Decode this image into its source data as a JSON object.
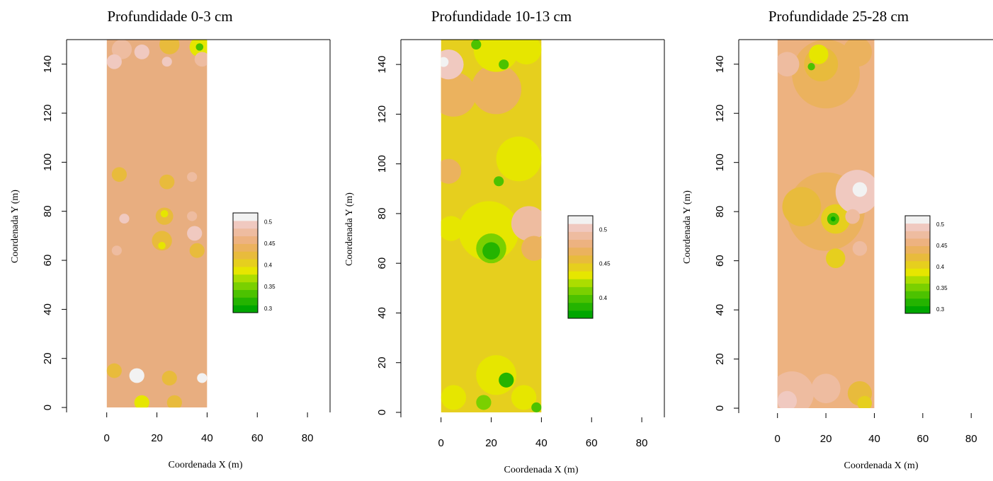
{
  "chart_data": [
    {
      "type": "heatmap",
      "title": "Profundidade 0-3 cm",
      "xlabel": "Coordenada X (m)",
      "ylabel": "Coordenada Y (m)",
      "xlim": [
        -16,
        89
      ],
      "ylim": [
        -2,
        150
      ],
      "xticks": [
        0,
        20,
        40,
        60,
        80
      ],
      "yticks": [
        0,
        20,
        40,
        60,
        80,
        100,
        120,
        140
      ],
      "field_extent": {
        "x": [
          0,
          40
        ],
        "y": [
          0,
          150
        ]
      },
      "background": "#E8AE80",
      "legend": {
        "colors": [
          "#00A600",
          "#24B400",
          "#4CC200",
          "#7AD000",
          "#ABDD00",
          "#E6E600",
          "#E6CF1E",
          "#E8BB3C",
          "#EBB25E",
          "#EDB280",
          "#EEBCA0",
          "#F0C9C0",
          "#F2F2F2"
        ],
        "range": [
          0.29,
          0.52
        ],
        "labels": [
          {
            "value": 0.3,
            "text": "0.3"
          },
          {
            "value": 0.35,
            "text": "0.35"
          },
          {
            "value": 0.4,
            "text": "0.4"
          },
          {
            "value": 0.45,
            "text": "0.45"
          },
          {
            "value": 0.5,
            "text": "0.5"
          }
        ]
      },
      "patches": [
        {
          "x": 6,
          "y": 146,
          "r": 4,
          "color": "#EEBCA0"
        },
        {
          "x": 14,
          "y": 145,
          "r": 3,
          "color": "#F0C9C0"
        },
        {
          "x": 3,
          "y": 141,
          "r": 3,
          "color": "#F0C9C0"
        },
        {
          "x": 25,
          "y": 148,
          "r": 4,
          "color": "#E8BB3C"
        },
        {
          "x": 37,
          "y": 147,
          "r": 4,
          "color": "#E6E600"
        },
        {
          "x": 37,
          "y": 147,
          "r": 1.5,
          "color": "#4CC200"
        },
        {
          "x": 38,
          "y": 142,
          "r": 3,
          "color": "#EEBCA0"
        },
        {
          "x": 24,
          "y": 141,
          "r": 2,
          "color": "#F0C9C0"
        },
        {
          "x": 5,
          "y": 95,
          "r": 3,
          "color": "#E8BB3C"
        },
        {
          "x": 24,
          "y": 92,
          "r": 3,
          "color": "#E8BB3C"
        },
        {
          "x": 34,
          "y": 94,
          "r": 2,
          "color": "#EEBCA0"
        },
        {
          "x": 7,
          "y": 77,
          "r": 2,
          "color": "#F0C9C0"
        },
        {
          "x": 23,
          "y": 78,
          "r": 3.5,
          "color": "#E8BB3C"
        },
        {
          "x": 23,
          "y": 79,
          "r": 1.5,
          "color": "#E6E600"
        },
        {
          "x": 22,
          "y": 68,
          "r": 4,
          "color": "#E8BB3C"
        },
        {
          "x": 22,
          "y": 66,
          "r": 1.5,
          "color": "#E6E600"
        },
        {
          "x": 35,
          "y": 71,
          "r": 3,
          "color": "#F0C9C0"
        },
        {
          "x": 36,
          "y": 64,
          "r": 3,
          "color": "#E8BB3C"
        },
        {
          "x": 4,
          "y": 64,
          "r": 2,
          "color": "#EEBCA0"
        },
        {
          "x": 34,
          "y": 78,
          "r": 2,
          "color": "#EEBCA0"
        },
        {
          "x": 3,
          "y": 15,
          "r": 3,
          "color": "#E8BB3C"
        },
        {
          "x": 12,
          "y": 13,
          "r": 3,
          "color": "#F2F2F2"
        },
        {
          "x": 25,
          "y": 12,
          "r": 3,
          "color": "#E8BB3C"
        },
        {
          "x": 38,
          "y": 12,
          "r": 2,
          "color": "#F2F2F2"
        },
        {
          "x": 14,
          "y": 2,
          "r": 3,
          "color": "#E6E600"
        },
        {
          "x": 27,
          "y": 2,
          "r": 3,
          "color": "#E8BB3C"
        }
      ]
    },
    {
      "type": "heatmap",
      "title": "Profundidade 10-13 cm",
      "xlabel": "Coordenada X (m)",
      "ylabel": "Coordenada Y (m)",
      "xlim": [
        -16,
        89
      ],
      "ylim": [
        -2,
        150
      ],
      "xticks": [
        0,
        20,
        40,
        60,
        80
      ],
      "yticks": [
        0,
        20,
        40,
        60,
        80,
        100,
        120,
        140
      ],
      "field_extent": {
        "x": [
          0,
          40
        ],
        "y": [
          0,
          150
        ]
      },
      "background": "#E6CF1E",
      "legend": {
        "colors": [
          "#00A600",
          "#24B400",
          "#4CC200",
          "#7AD000",
          "#ABDD00",
          "#E6E600",
          "#E6CF1E",
          "#E8BB3C",
          "#EBB25E",
          "#EDB280",
          "#EEBCA0",
          "#F0C9C0",
          "#F2F2F2"
        ],
        "range": [
          0.37,
          0.52
        ],
        "labels": [
          {
            "value": 0.4,
            "text": "0.4"
          },
          {
            "value": 0.45,
            "text": "0.45"
          },
          {
            "value": 0.5,
            "text": "0.5"
          }
        ]
      },
      "patches": [
        {
          "x": 5,
          "y": 128,
          "r": 9,
          "color": "#EBB25E"
        },
        {
          "x": 22,
          "y": 130,
          "r": 10,
          "color": "#EBB25E"
        },
        {
          "x": 3,
          "y": 140,
          "r": 6,
          "color": "#F0C9C0"
        },
        {
          "x": 1,
          "y": 141,
          "r": 2,
          "color": "#F2F2F2"
        },
        {
          "x": 22,
          "y": 146,
          "r": 9,
          "color": "#E6E600"
        },
        {
          "x": 34,
          "y": 146,
          "r": 6,
          "color": "#E6E600"
        },
        {
          "x": 25,
          "y": 140,
          "r": 2,
          "color": "#4CC200"
        },
        {
          "x": 14,
          "y": 148,
          "r": 2,
          "color": "#4CC200"
        },
        {
          "x": 31,
          "y": 102,
          "r": 9,
          "color": "#E6E600"
        },
        {
          "x": 23,
          "y": 93,
          "r": 2,
          "color": "#4CC200"
        },
        {
          "x": 3,
          "y": 97,
          "r": 5,
          "color": "#EBB25E"
        },
        {
          "x": 19,
          "y": 73,
          "r": 12,
          "color": "#E6E600"
        },
        {
          "x": 20,
          "y": 66,
          "r": 6,
          "color": "#7AD000"
        },
        {
          "x": 20,
          "y": 65,
          "r": 3.5,
          "color": "#24B400"
        },
        {
          "x": 35,
          "y": 76,
          "r": 7,
          "color": "#EEBCA0"
        },
        {
          "x": 37,
          "y": 66,
          "r": 5,
          "color": "#EBB25E"
        },
        {
          "x": 4,
          "y": 74,
          "r": 5,
          "color": "#E6E600"
        },
        {
          "x": 22,
          "y": 15,
          "r": 8,
          "color": "#E6E600"
        },
        {
          "x": 26,
          "y": 13,
          "r": 3,
          "color": "#24B400"
        },
        {
          "x": 5,
          "y": 6,
          "r": 5,
          "color": "#E6E600"
        },
        {
          "x": 33,
          "y": 6,
          "r": 5,
          "color": "#E6E600"
        },
        {
          "x": 17,
          "y": 4,
          "r": 3,
          "color": "#7AD000"
        },
        {
          "x": 38,
          "y": 2,
          "r": 2,
          "color": "#4CC200"
        }
      ]
    },
    {
      "type": "heatmap",
      "title": "Profundidade 25-28 cm",
      "xlabel": "Coordenada X (m)",
      "ylabel": "Coordenada Y (m)",
      "xlim": [
        -16,
        89
      ],
      "ylim": [
        -2,
        150
      ],
      "xticks": [
        0,
        20,
        40,
        60,
        80
      ],
      "yticks": [
        0,
        20,
        40,
        60,
        80,
        100,
        120,
        140
      ],
      "field_extent": {
        "x": [
          0,
          40
        ],
        "y": [
          0,
          150
        ]
      },
      "background": "#EDB280",
      "legend": {
        "colors": [
          "#00A600",
          "#24B400",
          "#4CC200",
          "#7AD000",
          "#ABDD00",
          "#E6E600",
          "#E6CF1E",
          "#E8BB3C",
          "#EBB25E",
          "#EDB280",
          "#EEBCA0",
          "#F0C9C0",
          "#F2F2F2"
        ],
        "range": [
          0.29,
          0.52
        ],
        "labels": [
          {
            "value": 0.3,
            "text": "0.3"
          },
          {
            "value": 0.35,
            "text": "0.35"
          },
          {
            "value": 0.4,
            "text": "0.4"
          },
          {
            "value": 0.45,
            "text": "0.45"
          },
          {
            "value": 0.5,
            "text": "0.5"
          }
        ]
      },
      "patches": [
        {
          "x": 20,
          "y": 136,
          "r": 14,
          "color": "#EBB25E"
        },
        {
          "x": 18,
          "y": 140,
          "r": 7,
          "color": "#E8BB3C"
        },
        {
          "x": 17,
          "y": 144,
          "r": 4,
          "color": "#E6E600"
        },
        {
          "x": 14,
          "y": 139,
          "r": 1.5,
          "color": "#4CC200"
        },
        {
          "x": 4,
          "y": 140,
          "r": 5,
          "color": "#EEBCA0"
        },
        {
          "x": 33,
          "y": 145,
          "r": 6,
          "color": "#EBB25E"
        },
        {
          "x": 20,
          "y": 80,
          "r": 16,
          "color": "#EBB25E"
        },
        {
          "x": 10,
          "y": 82,
          "r": 8,
          "color": "#E8BB3C"
        },
        {
          "x": 24,
          "y": 77,
          "r": 6,
          "color": "#E6CF1E"
        },
        {
          "x": 23,
          "y": 77,
          "r": 2.5,
          "color": "#4CC200"
        },
        {
          "x": 23,
          "y": 77,
          "r": 1,
          "color": "#00A600"
        },
        {
          "x": 33,
          "y": 88,
          "r": 9,
          "color": "#F0C9C0"
        },
        {
          "x": 34,
          "y": 89,
          "r": 3,
          "color": "#F2F2F2"
        },
        {
          "x": 31,
          "y": 78,
          "r": 3,
          "color": "#EEBCA0"
        },
        {
          "x": 24,
          "y": 61,
          "r": 4,
          "color": "#E6CF1E"
        },
        {
          "x": 34,
          "y": 65,
          "r": 3,
          "color": "#EEBCA0"
        },
        {
          "x": 6,
          "y": 6,
          "r": 9,
          "color": "#EEBCA0"
        },
        {
          "x": 4,
          "y": 3,
          "r": 4,
          "color": "#F0C9C0"
        },
        {
          "x": 20,
          "y": 8,
          "r": 6,
          "color": "#EEBCA0"
        },
        {
          "x": 34,
          "y": 6,
          "r": 5,
          "color": "#E8BB3C"
        },
        {
          "x": 36,
          "y": 2,
          "r": 3,
          "color": "#E6CF1E"
        }
      ]
    }
  ]
}
